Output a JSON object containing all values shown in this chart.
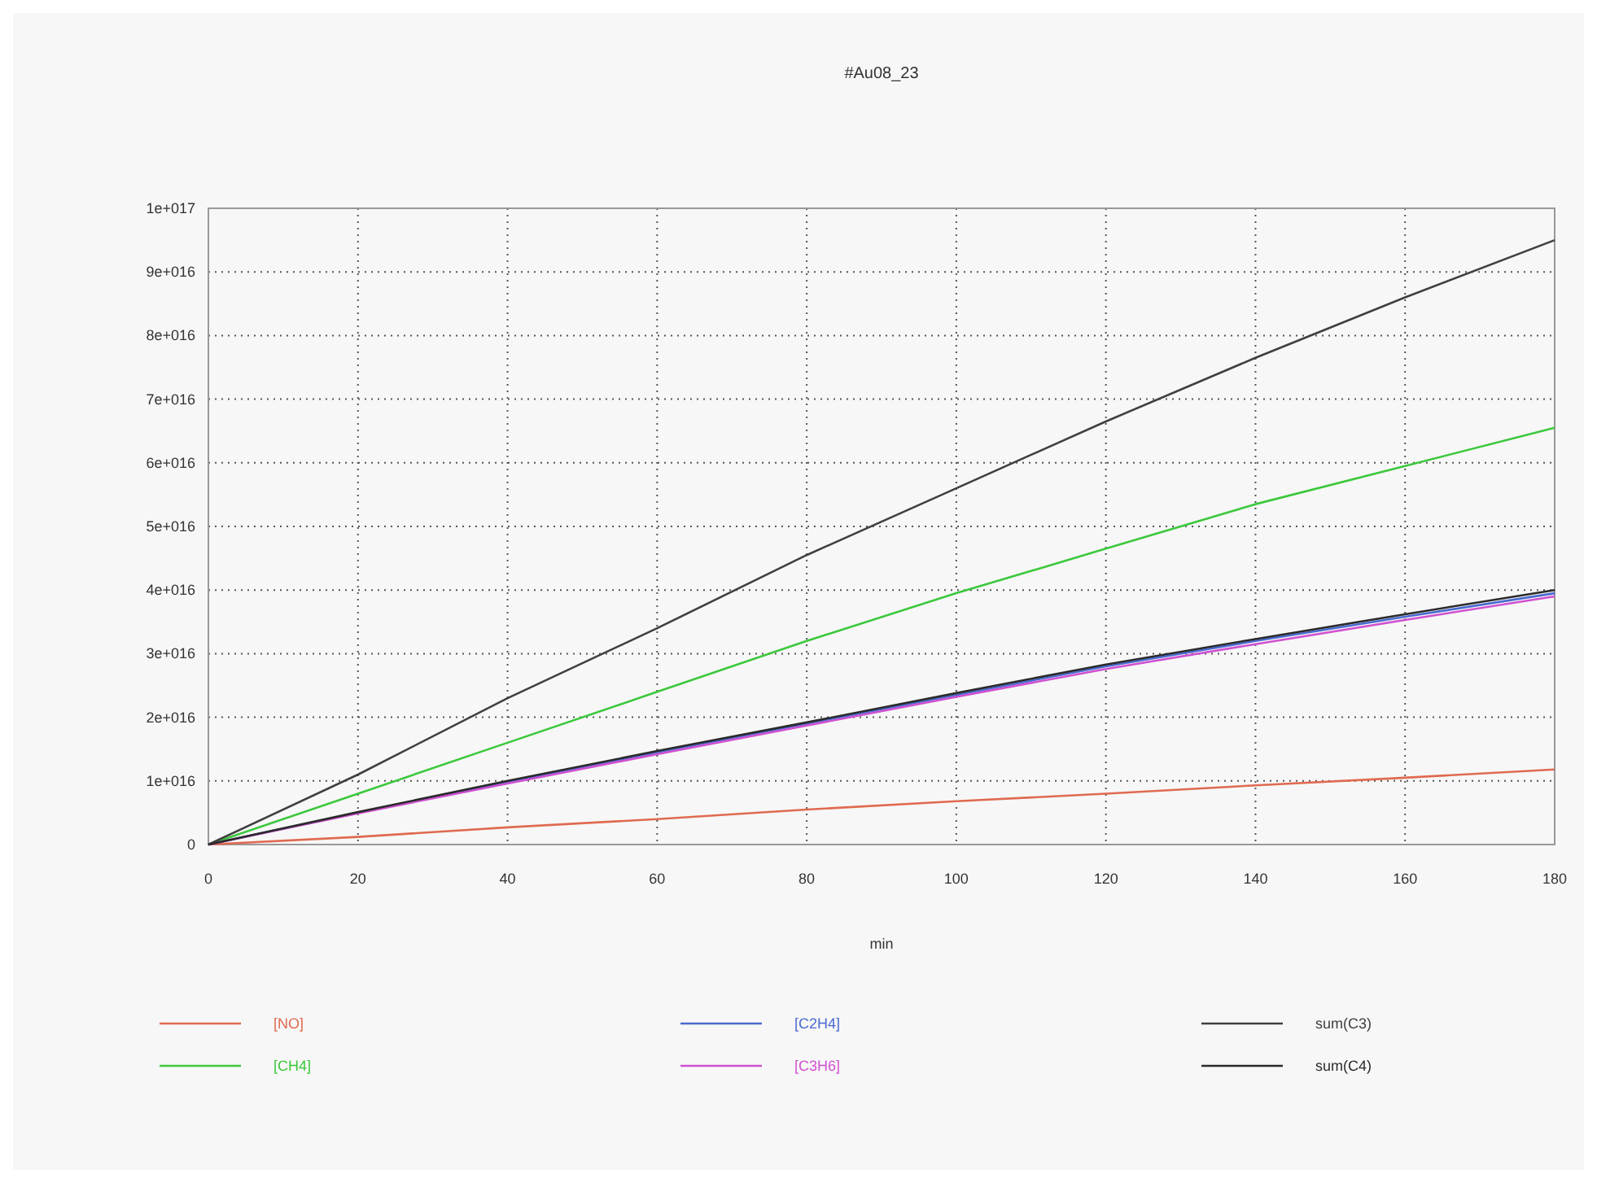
{
  "chart_data": {
    "type": "line",
    "title": "#Au08_23",
    "xlabel": "min",
    "x": [
      0,
      20,
      40,
      60,
      80,
      100,
      120,
      140,
      160,
      180
    ],
    "series": [
      {
        "name": "[NO]",
        "color": "#e06a50",
        "values": [
          0,
          1200000000000000.0,
          2700000000000000.0,
          4000000000000000.0,
          5500000000000000.0,
          6800000000000000.0,
          8000000000000000.0,
          9300000000000000.0,
          1.05e+16,
          1.18e+16
        ]
      },
      {
        "name": "[CH4]",
        "color": "#3cc83c",
        "values": [
          0,
          8000000000000000.0,
          1.6e+16,
          2.4e+16,
          3.2e+16,
          3.95e+16,
          4.65e+16,
          5.35e+16,
          5.95e+16,
          6.55e+16
        ]
      },
      {
        "name": "[C2H4]",
        "color": "#4a6ad0",
        "values": [
          0,
          5000000000000000.0,
          9800000000000000.0,
          1.45e+16,
          1.9e+16,
          2.35e+16,
          2.8e+16,
          3.2e+16,
          3.58e+16,
          3.95e+16
        ]
      },
      {
        "name": "[C3H6]",
        "color": "#d050d0",
        "values": [
          0,
          4900000000000000.0,
          9600000000000000.0,
          1.42e+16,
          1.87e+16,
          2.32e+16,
          2.76e+16,
          3.15e+16,
          3.53e+16,
          3.9e+16
        ]
      },
      {
        "name": "sum(C3)",
        "color": "#404040",
        "values": [
          0,
          1.1e+16,
          2.3e+16,
          3.4e+16,
          4.55e+16,
          5.6e+16,
          6.65e+16,
          7.65e+16,
          8.6e+16,
          9.5e+16
        ]
      },
      {
        "name": "sum(C4)",
        "color": "#2a2a2a",
        "values": [
          0,
          5100000000000000.0,
          1e+16,
          1.47e+16,
          1.92e+16,
          2.38e+16,
          2.83e+16,
          3.23e+16,
          3.62e+16,
          4e+16
        ]
      }
    ],
    "xlim": [
      0,
      180
    ],
    "xticks": [
      0,
      20,
      40,
      60,
      80,
      100,
      120,
      140,
      160,
      180
    ],
    "ylim": [
      0,
      1e+17
    ],
    "yticks": [
      0,
      {
        "value": 1e+16,
        "label": "1e+016"
      },
      {
        "value": 2e+16,
        "label": "2e+016"
      },
      {
        "value": 3e+16,
        "label": "3e+016"
      },
      {
        "value": 4e+16,
        "label": "4e+016"
      },
      {
        "value": 5e+16,
        "label": "5e+016"
      },
      {
        "value": 6e+16,
        "label": "6e+016"
      },
      {
        "value": 7e+16,
        "label": "7e+016"
      },
      {
        "value": 8e+16,
        "label": "8e+016"
      },
      {
        "value": 9e+16,
        "label": "9e+016"
      },
      {
        "value": 1e+17,
        "label": "1e+017"
      }
    ],
    "grid": true,
    "legend": "bottom",
    "line_style": "solid",
    "marker": "none"
  }
}
